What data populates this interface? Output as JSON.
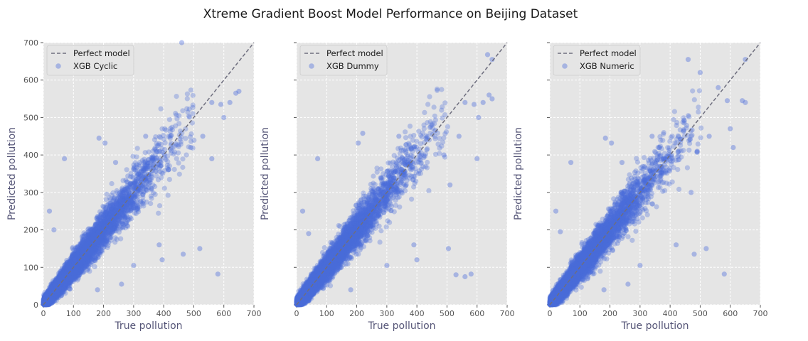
{
  "figure": {
    "title": "Xtreme Gradient Boost Model Performance on Beijing Dataset"
  },
  "colors": {
    "points": "#4a6cdb",
    "perfect_line": "#6e6e7e",
    "axes_bg": "#e5e5e5",
    "grid": "#ffffff"
  },
  "chart_data": [
    {
      "type": "scatter",
      "xlabel": "True pollution",
      "ylabel": "Predicted pollution",
      "xlim": [
        0,
        700
      ],
      "ylim": [
        0,
        700
      ],
      "xticks": [
        "0",
        "100",
        "200",
        "300",
        "400",
        "500",
        "600",
        "700"
      ],
      "yticks": [
        "0",
        "100",
        "200",
        "300",
        "400",
        "500",
        "600",
        "700"
      ],
      "grid": true,
      "legend": {
        "placement": "top-left",
        "entries": [
          "Perfect model",
          "XGB Cyclic"
        ]
      },
      "series": [
        {
          "name": "Perfect model",
          "kind": "line",
          "x": [
            0,
            700
          ],
          "y": [
            0,
            700
          ]
        },
        {
          "name": "XGB Cyclic",
          "kind": "scatter",
          "approx_n": 9000,
          "noise_sd": 22,
          "outliers": [
            [
              70,
              390
            ],
            [
              185,
              445
            ],
            [
              205,
              432
            ],
            [
              240,
              270
            ],
            [
              265,
              300
            ],
            [
              340,
              450
            ],
            [
              385,
              160
            ],
            [
              395,
              120
            ],
            [
              465,
              135
            ],
            [
              520,
              150
            ],
            [
              580,
              82
            ],
            [
              560,
              540
            ],
            [
              590,
              535
            ],
            [
              600,
              500
            ],
            [
              640,
              565
            ],
            [
              650,
              570
            ],
            [
              620,
              540
            ],
            [
              530,
              450
            ],
            [
              560,
              390
            ],
            [
              490,
              420
            ],
            [
              180,
              40
            ],
            [
              20,
              250
            ],
            [
              35,
              200
            ],
            [
              460,
              700
            ],
            [
              240,
              380
            ],
            [
              300,
              105
            ],
            [
              260,
              55
            ],
            [
              105,
              120
            ]
          ]
        }
      ]
    },
    {
      "type": "scatter",
      "xlabel": "True pollution",
      "ylabel": "Predicted pollution",
      "xlim": [
        0,
        700
      ],
      "ylim": [
        0,
        700
      ],
      "xticks": [
        "0",
        "100",
        "200",
        "300",
        "400",
        "500",
        "600",
        "700"
      ],
      "yticks": [
        "0",
        "100",
        "200",
        "300",
        "400",
        "500",
        "600",
        "700"
      ],
      "grid": true,
      "legend": {
        "placement": "top-left",
        "entries": [
          "Perfect model",
          "XGB Dummy"
        ]
      },
      "series": [
        {
          "name": "Perfect model",
          "kind": "line",
          "x": [
            0,
            700
          ],
          "y": [
            0,
            700
          ]
        },
        {
          "name": "XGB Dummy",
          "kind": "scatter",
          "approx_n": 9000,
          "noise_sd": 22,
          "outliers": [
            [
              70,
              390
            ],
            [
              220,
              458
            ],
            [
              205,
              432
            ],
            [
              240,
              270
            ],
            [
              255,
              310
            ],
            [
              340,
              450
            ],
            [
              390,
              160
            ],
            [
              400,
              120
            ],
            [
              505,
              150
            ],
            [
              530,
              80
            ],
            [
              580,
              82
            ],
            [
              560,
              540
            ],
            [
              590,
              535
            ],
            [
              605,
              500
            ],
            [
              640,
              560
            ],
            [
              650,
              550
            ],
            [
              620,
              540
            ],
            [
              540,
              450
            ],
            [
              600,
              390
            ],
            [
              490,
              400
            ],
            [
              180,
              40
            ],
            [
              20,
              250
            ],
            [
              40,
              190
            ],
            [
              635,
              668
            ],
            [
              650,
              655
            ],
            [
              560,
              75
            ],
            [
              510,
              320
            ],
            [
              300,
              105
            ]
          ]
        }
      ]
    },
    {
      "type": "scatter",
      "xlabel": "True pollution",
      "ylabel": "Predicted pollution",
      "xlim": [
        0,
        700
      ],
      "ylim": [
        0,
        700
      ],
      "xticks": [
        "0",
        "100",
        "200",
        "300",
        "400",
        "500",
        "600",
        "700"
      ],
      "yticks": [
        "0",
        "100",
        "200",
        "300",
        "400",
        "500",
        "600",
        "700"
      ],
      "grid": true,
      "legend": {
        "placement": "top-left",
        "entries": [
          "Perfect model",
          "XGB Numeric"
        ]
      },
      "series": [
        {
          "name": "Perfect model",
          "kind": "line",
          "x": [
            0,
            700
          ],
          "y": [
            0,
            700
          ]
        },
        {
          "name": "XGB Numeric",
          "kind": "scatter",
          "approx_n": 9000,
          "noise_sd": 22,
          "outliers": [
            [
              70,
              380
            ],
            [
              185,
              445
            ],
            [
              205,
              432
            ],
            [
              240,
              270
            ],
            [
              265,
              300
            ],
            [
              340,
              450
            ],
            [
              420,
              160
            ],
            [
              480,
              135
            ],
            [
              520,
              150
            ],
            [
              580,
              82
            ],
            [
              500,
              620
            ],
            [
              560,
              580
            ],
            [
              590,
              545
            ],
            [
              640,
              545
            ],
            [
              650,
              540
            ],
            [
              610,
              420
            ],
            [
              460,
              655
            ],
            [
              650,
              655
            ],
            [
              530,
              450
            ],
            [
              490,
              410
            ],
            [
              180,
              40
            ],
            [
              20,
              250
            ],
            [
              35,
              195
            ],
            [
              240,
              380
            ],
            [
              300,
              105
            ],
            [
              260,
              55
            ],
            [
              470,
              300
            ],
            [
              600,
              470
            ]
          ]
        }
      ]
    }
  ]
}
